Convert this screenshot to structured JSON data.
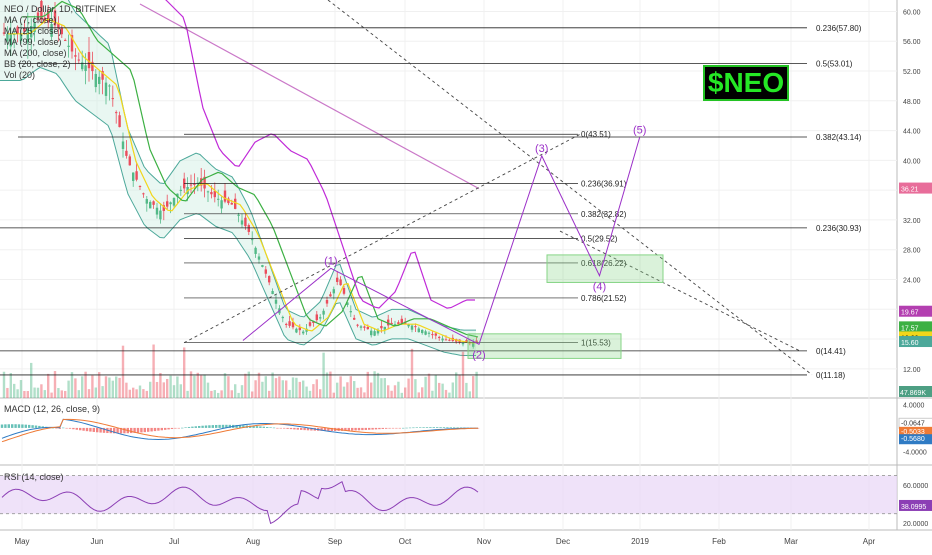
{
  "legend": {
    "symbol": "NEO / Dollar, 1D, BITFINEX",
    "ma7": "MA (7, close)",
    "ma25": "MA (25, close)",
    "ma99": "MA (99, close)",
    "ma200": "MA (200, close)",
    "bb": "BB (20, close, 2)",
    "vol": "Vol (20)"
  },
  "macd_legend": "MACD (12, 26, close, 9)",
  "rsi_legend": "RSI (14, close)",
  "brand_label": "$NEO",
  "colors": {
    "up": "#53b987",
    "down": "#eb4d5c",
    "ma7": "#f2d61b",
    "ma25": "#3cb043",
    "ma99": "#c02ad8",
    "ma200": "#b33fb0",
    "bb": "#4ca89a",
    "wave": "#9b30c8",
    "box": "#86d486",
    "rsi": "#8c3fb5",
    "macd": "#2f7bc4",
    "signal": "#ef7a35"
  },
  "chart_data": {
    "type": "line",
    "title": "NEO / Dollar, 1D, BITFINEX",
    "x_ticks": [
      "May",
      "Jun",
      "Jul",
      "Aug",
      "Sep",
      "Oct",
      "Nov",
      "Dec",
      "2019",
      "Feb",
      "Mar",
      "Apr"
    ],
    "y_ticks": [
      "60.00",
      "56.00",
      "52.00",
      "48.00",
      "44.00",
      "40.00",
      "36.00",
      "32.00",
      "28.00",
      "24.00",
      "20.00",
      "16.00",
      "12.00"
    ],
    "ylim": [
      10.5,
      61
    ],
    "close_series": {
      "name": "NEO/USD",
      "x": [
        "2018-05-01",
        "2018-05-08",
        "2018-05-15",
        "2018-05-22",
        "2018-05-29",
        "2018-06-05",
        "2018-06-12",
        "2018-06-19",
        "2018-06-26",
        "2018-07-03",
        "2018-07-10",
        "2018-07-17",
        "2018-07-24",
        "2018-07-31",
        "2018-08-07",
        "2018-08-14",
        "2018-08-21",
        "2018-08-28",
        "2018-09-04",
        "2018-09-11",
        "2018-09-18",
        "2018-09-25",
        "2018-10-02",
        "2018-10-09",
        "2018-10-16",
        "2018-10-23",
        "2018-10-30"
      ],
      "values": [
        57,
        59,
        58,
        54,
        52,
        50,
        40,
        35,
        33,
        36,
        37,
        35,
        34,
        30,
        24,
        18,
        17,
        19,
        24,
        18,
        17,
        18,
        18,
        17,
        16,
        15.5,
        15.5
      ]
    },
    "fib_levels": [
      {
        "label": "0.236(57.80)",
        "value": 57.8
      },
      {
        "label": "0.5(53.01)",
        "value": 53.01
      },
      {
        "label": "0.382(43.14)",
        "value": 43.14
      },
      {
        "label": "0.236(30.93)",
        "value": 30.93
      },
      {
        "label": "0(14.41)",
        "value": 14.41
      },
      {
        "label": "0(11.18)",
        "value": 11.18
      }
    ],
    "inner_fib_levels": [
      {
        "label": "0(43.51)",
        "value": 43.51
      },
      {
        "label": "0.236(36.91)",
        "value": 36.91
      },
      {
        "label": "0.382(32.82)",
        "value": 32.82
      },
      {
        "label": "0.5(29.52)",
        "value": 29.52
      },
      {
        "label": "0.618(26.22)",
        "value": 26.22
      },
      {
        "label": "0.786(21.52)",
        "value": 21.52
      },
      {
        "label": "1(15.53)",
        "value": 15.53
      }
    ],
    "waves": [
      {
        "label": "(1)",
        "x": "2018-09-01",
        "y": 25.5
      },
      {
        "label": "(2)",
        "x": "2018-10-30",
        "y": 15.3
      },
      {
        "label": "(3)",
        "x": "2018-11-24",
        "y": 40.6
      },
      {
        "label": "(4)",
        "x": "2018-12-17",
        "y": 24.5
      },
      {
        "label": "(5)",
        "x": "2019-01-02",
        "y": 43.1
      }
    ],
    "price_tags": [
      {
        "text": "36.21",
        "value": 36.21,
        "color": "#e86d9a"
      },
      {
        "text": "19.67",
        "value": 19.67,
        "color": "#b33fb0"
      },
      {
        "text": "17.57",
        "value": 17.57,
        "color": "#3cb043"
      },
      {
        "text": "16.22",
        "value": 16.22,
        "color": "#f2d61b"
      },
      {
        "text": "15.60",
        "value": 15.6,
        "color": "#4ca89a"
      }
    ],
    "volume_tag": "47.869K",
    "macd": {
      "ticks": [
        "4.0000",
        "0.0000",
        "-4.0000"
      ],
      "ylim": [
        -6,
        4.6
      ],
      "tags": [
        {
          "text": "-0.0647",
          "value": -0.0647,
          "color": "#ffffff"
        },
        {
          "text": "-0.5033",
          "value": -0.5033,
          "color": "#ef7a35"
        },
        {
          "text": "-0.5680",
          "value": -0.568,
          "color": "#2f7bc4"
        }
      ]
    },
    "rsi": {
      "ticks": [
        "60.0000",
        "20.0000"
      ],
      "ylim": [
        15,
        80
      ],
      "tag": "38.0995",
      "tag_value": 38.0995
    }
  }
}
